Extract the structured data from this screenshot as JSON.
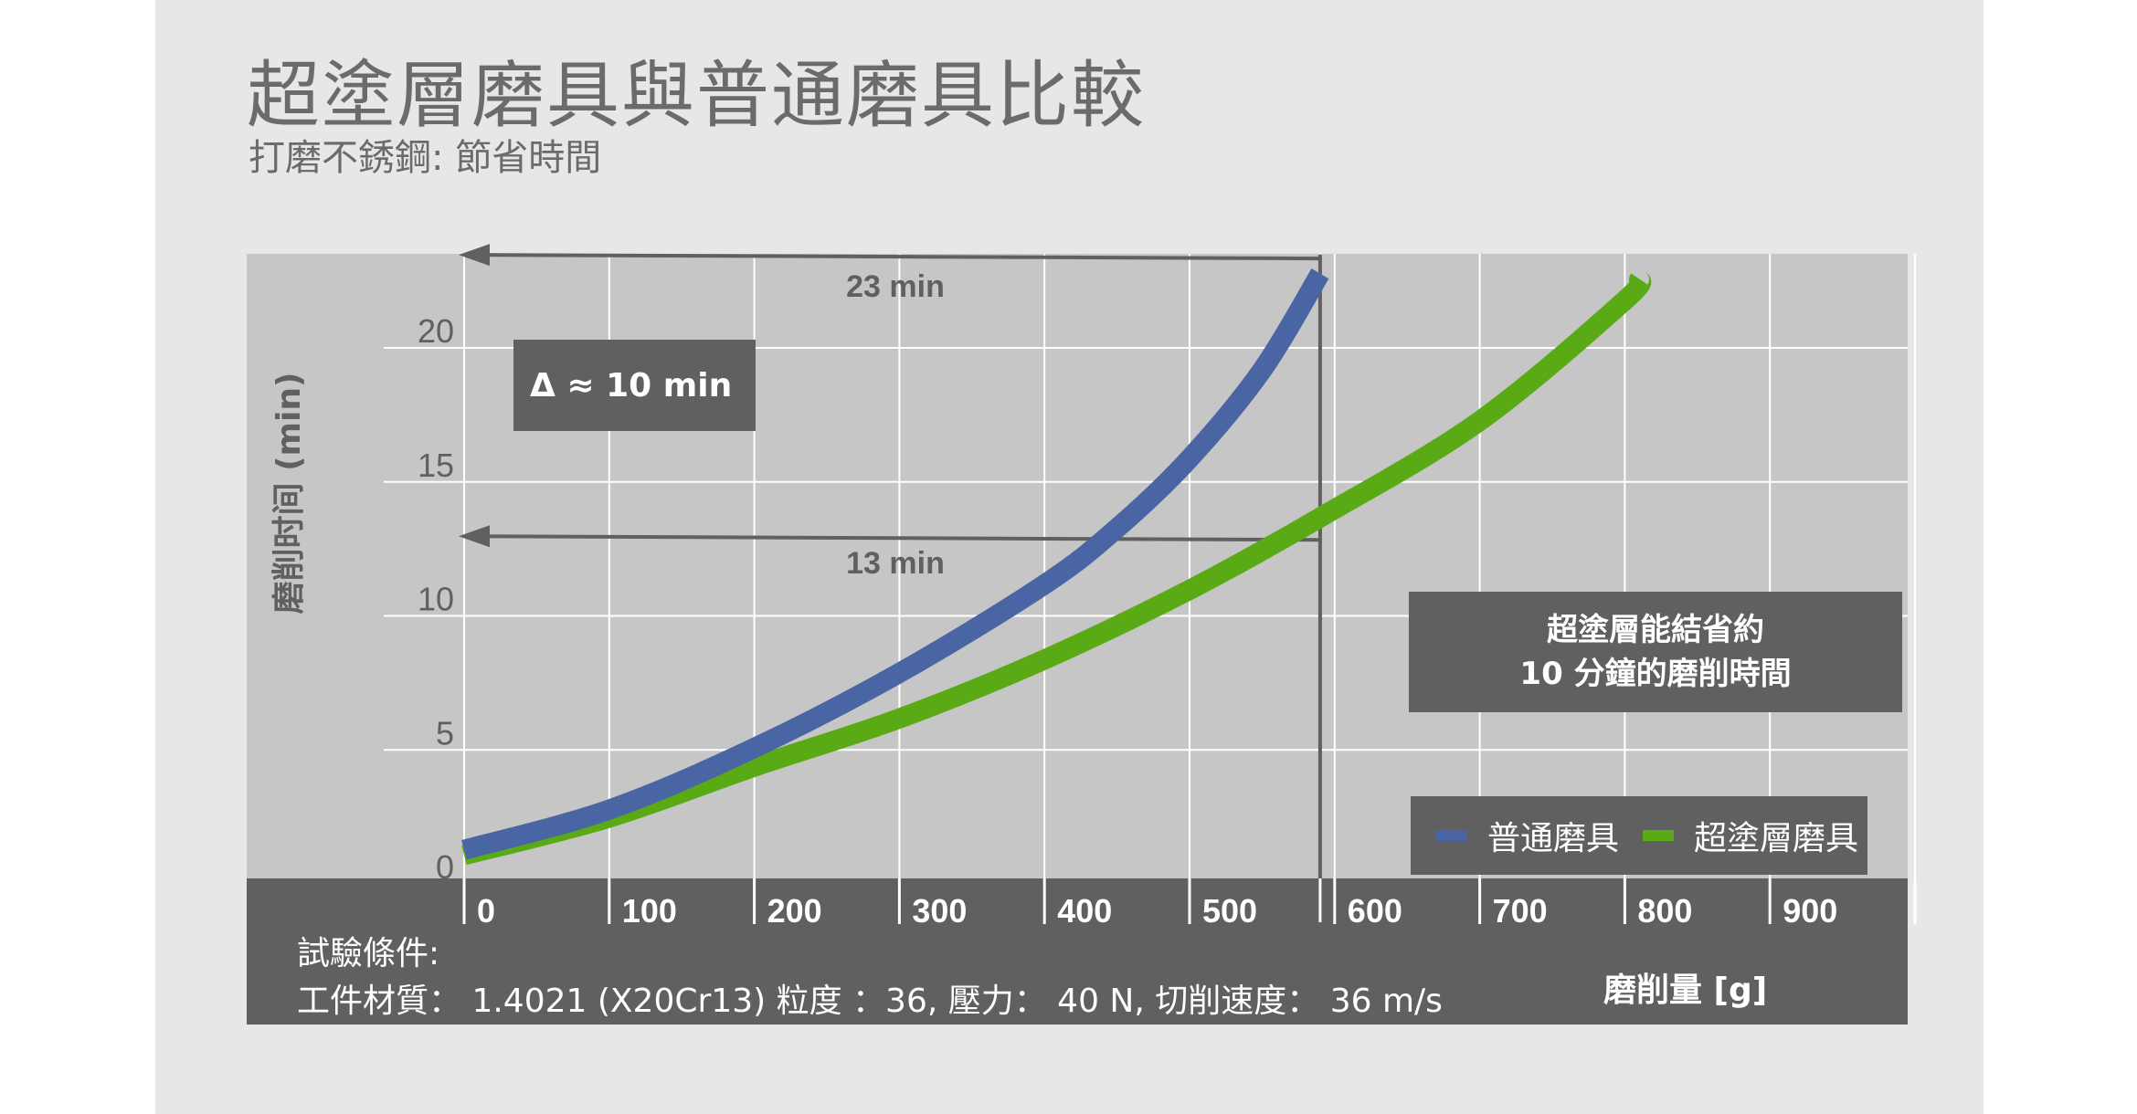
{
  "title": "超塗層磨具與普通磨具比較",
  "subtitle": "打磨不銹鋼: 節省時間",
  "annotations": {
    "delta": "Δ ≈ 10 min",
    "arrow_top": "23 min",
    "arrow_mid": "13 min",
    "savings_line1": "超塗層能結省約",
    "savings_line2": "10 分鐘的磨削時間"
  },
  "conditions": {
    "label": "試驗條件:",
    "text": "工件材質： 1.4021 (X20Cr13) 粒度 ：36,  壓力： 40 N, 切削速度： 36 m/s"
  },
  "colors": {
    "series_normal": "#4a65a3",
    "series_coated": "#5aaa16",
    "plot_bg": "#c6c6c6",
    "band": "#606060",
    "arrow": "#606060"
  },
  "chart_data": {
    "type": "line",
    "xlabel": "磨削量 [g]",
    "ylabel": "磨削时间 (min)",
    "xlim": [
      0,
      1000
    ],
    "ylim": [
      0,
      23
    ],
    "x_ticks": [
      0,
      100,
      200,
      300,
      400,
      500,
      600,
      700,
      800,
      900
    ],
    "y_ticks": [
      0,
      5,
      10,
      15,
      20
    ],
    "grid": true,
    "legend_position": "bottom-right",
    "series": [
      {
        "name": "普通磨具",
        "color": "#4a65a3",
        "x": [
          0,
          100,
          200,
          300,
          400,
          450,
          500,
          550,
          590
        ],
        "y": [
          1,
          2.5,
          4.8,
          7.6,
          10.9,
          13,
          15.6,
          18.9,
          22.5
        ]
      },
      {
        "name": "超塗層磨具",
        "color": "#5aaa16",
        "x": [
          0,
          100,
          200,
          300,
          400,
          500,
          590,
          700,
          800,
          810
        ],
        "y": [
          0.8,
          2.2,
          4.1,
          5.9,
          8.1,
          10.7,
          13.4,
          17,
          21.5,
          22.3
        ]
      }
    ],
    "reference_x": 590,
    "reference_lines": [
      23,
      13
    ]
  }
}
